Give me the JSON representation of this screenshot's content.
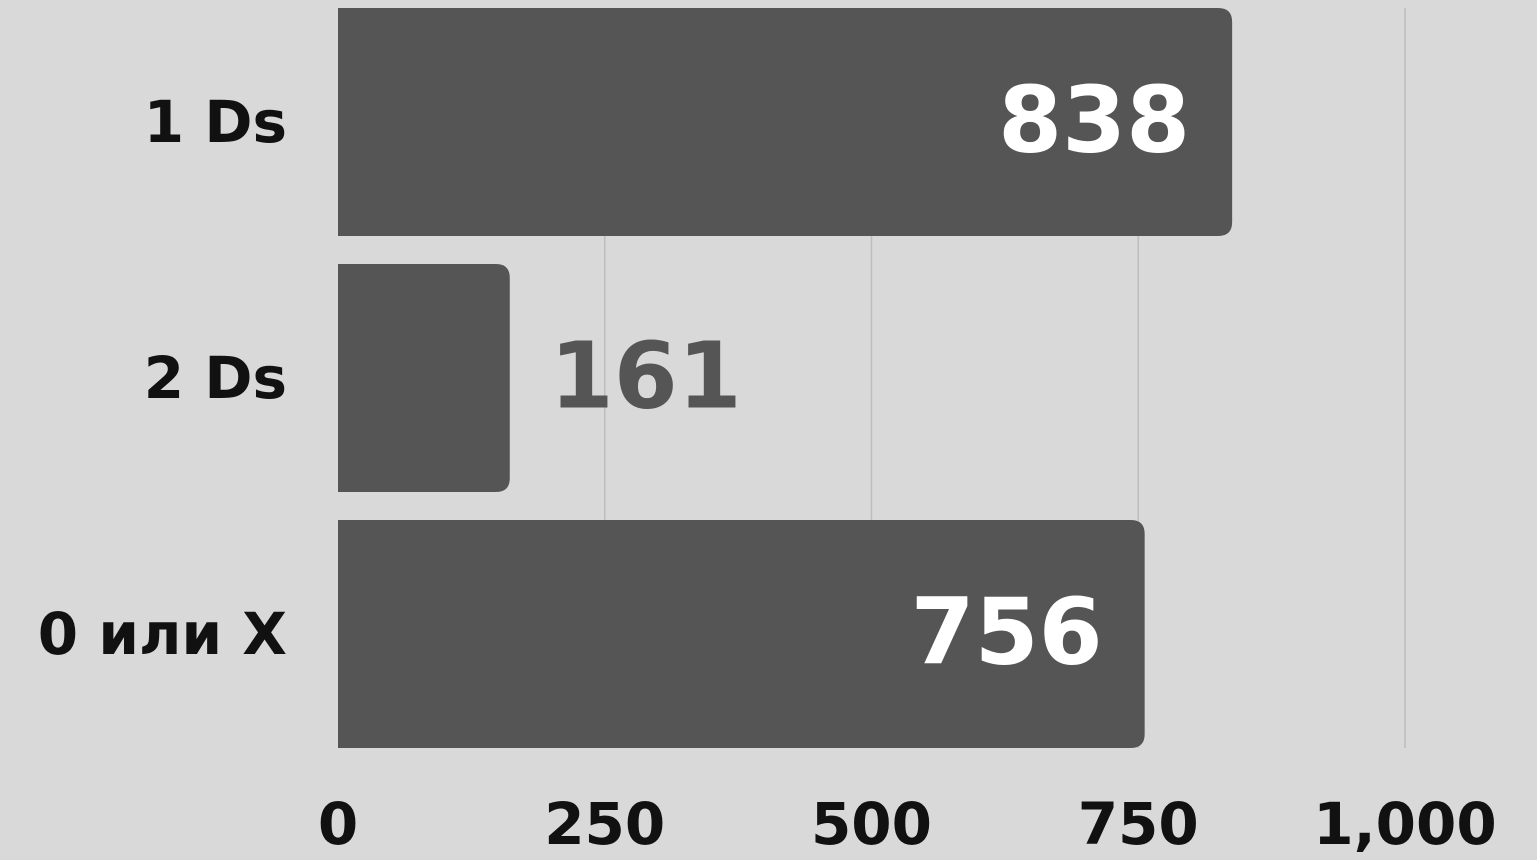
{
  "chart_data": {
    "type": "bar",
    "orientation": "horizontal",
    "categories": [
      "1 Ds",
      "2 Ds",
      "0 или X"
    ],
    "values": [
      838,
      161,
      756
    ],
    "color": "#555555",
    "xlim": [
      0,
      1000
    ],
    "xticks": [
      0,
      250,
      500,
      750,
      {
        "value": 1000,
        "label": "1,000"
      }
    ],
    "grid": true
  }
}
